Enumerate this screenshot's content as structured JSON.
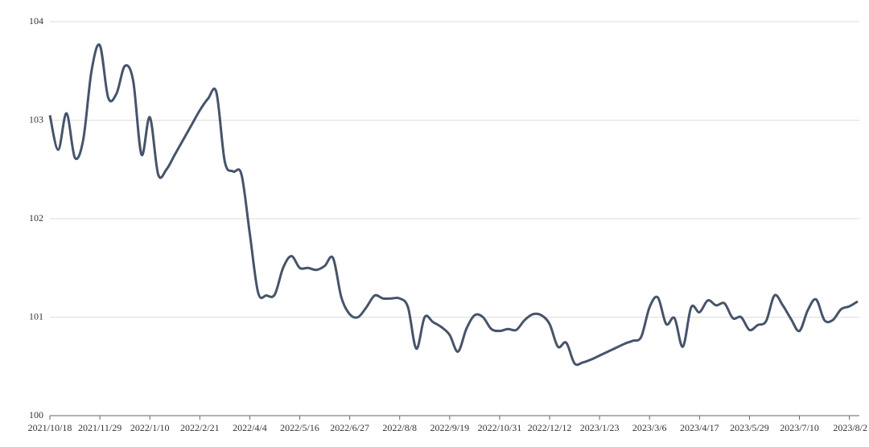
{
  "chart_data": {
    "type": "line",
    "categories": [
      "2021/10/18",
      null,
      null,
      null,
      null,
      null,
      "2021/11/29",
      null,
      null,
      null,
      null,
      null,
      "2022/1/10",
      null,
      null,
      null,
      null,
      null,
      "2022/2/21",
      null,
      null,
      null,
      null,
      null,
      "2022/4/4",
      null,
      null,
      null,
      null,
      null,
      "2022/5/16",
      null,
      null,
      null,
      null,
      null,
      "2022/6/27",
      null,
      null,
      null,
      null,
      null,
      "2022/8/8",
      null,
      null,
      null,
      null,
      null,
      "2022/9/19",
      null,
      null,
      null,
      null,
      null,
      "2022/10/31",
      null,
      null,
      null,
      null,
      null,
      "2022/12/12",
      null,
      null,
      null,
      null,
      null,
      "2023/1/23",
      null,
      null,
      null,
      null,
      null,
      "2023/3/6",
      null,
      null,
      null,
      null,
      null,
      "2023/4/17",
      null,
      null,
      null,
      null,
      null,
      "2023/5/29",
      null,
      null,
      null,
      null,
      null,
      "2023/7/10",
      null,
      null,
      null,
      null,
      null,
      "2023/8/2",
      null
    ],
    "values": [
      103.05,
      102.7,
      103.07,
      102.62,
      102.8,
      103.5,
      103.76,
      103.23,
      103.27,
      103.55,
      103.4,
      102.65,
      103.03,
      102.45,
      102.5,
      102.65,
      102.8,
      102.95,
      103.1,
      103.22,
      103.28,
      102.58,
      102.48,
      102.45,
      101.85,
      101.25,
      101.22,
      101.23,
      101.5,
      101.62,
      101.5,
      101.5,
      101.48,
      101.52,
      101.6,
      101.2,
      101.03,
      101.0,
      101.1,
      101.22,
      101.19,
      101.19,
      101.19,
      101.1,
      100.68,
      101.0,
      100.95,
      100.9,
      100.82,
      100.65,
      100.88,
      101.02,
      101.0,
      100.88,
      100.86,
      100.88,
      100.87,
      100.97,
      101.03,
      101.02,
      100.93,
      100.7,
      100.74,
      100.53,
      100.54,
      100.57,
      100.61,
      100.65,
      100.69,
      100.73,
      100.76,
      100.8,
      101.1,
      101.2,
      100.93,
      100.99,
      100.7,
      101.1,
      101.05,
      101.17,
      101.12,
      101.14,
      100.99,
      101.0,
      100.87,
      100.92,
      100.96,
      101.22,
      101.12,
      100.98,
      100.86,
      101.07,
      101.18,
      100.97,
      100.97,
      101.08,
      101.11,
      101.16
    ],
    "color": "#46546a",
    "ylim": [
      100,
      104
    ],
    "yticks": [
      100,
      101,
      102,
      103,
      104
    ],
    "grid": true
  }
}
